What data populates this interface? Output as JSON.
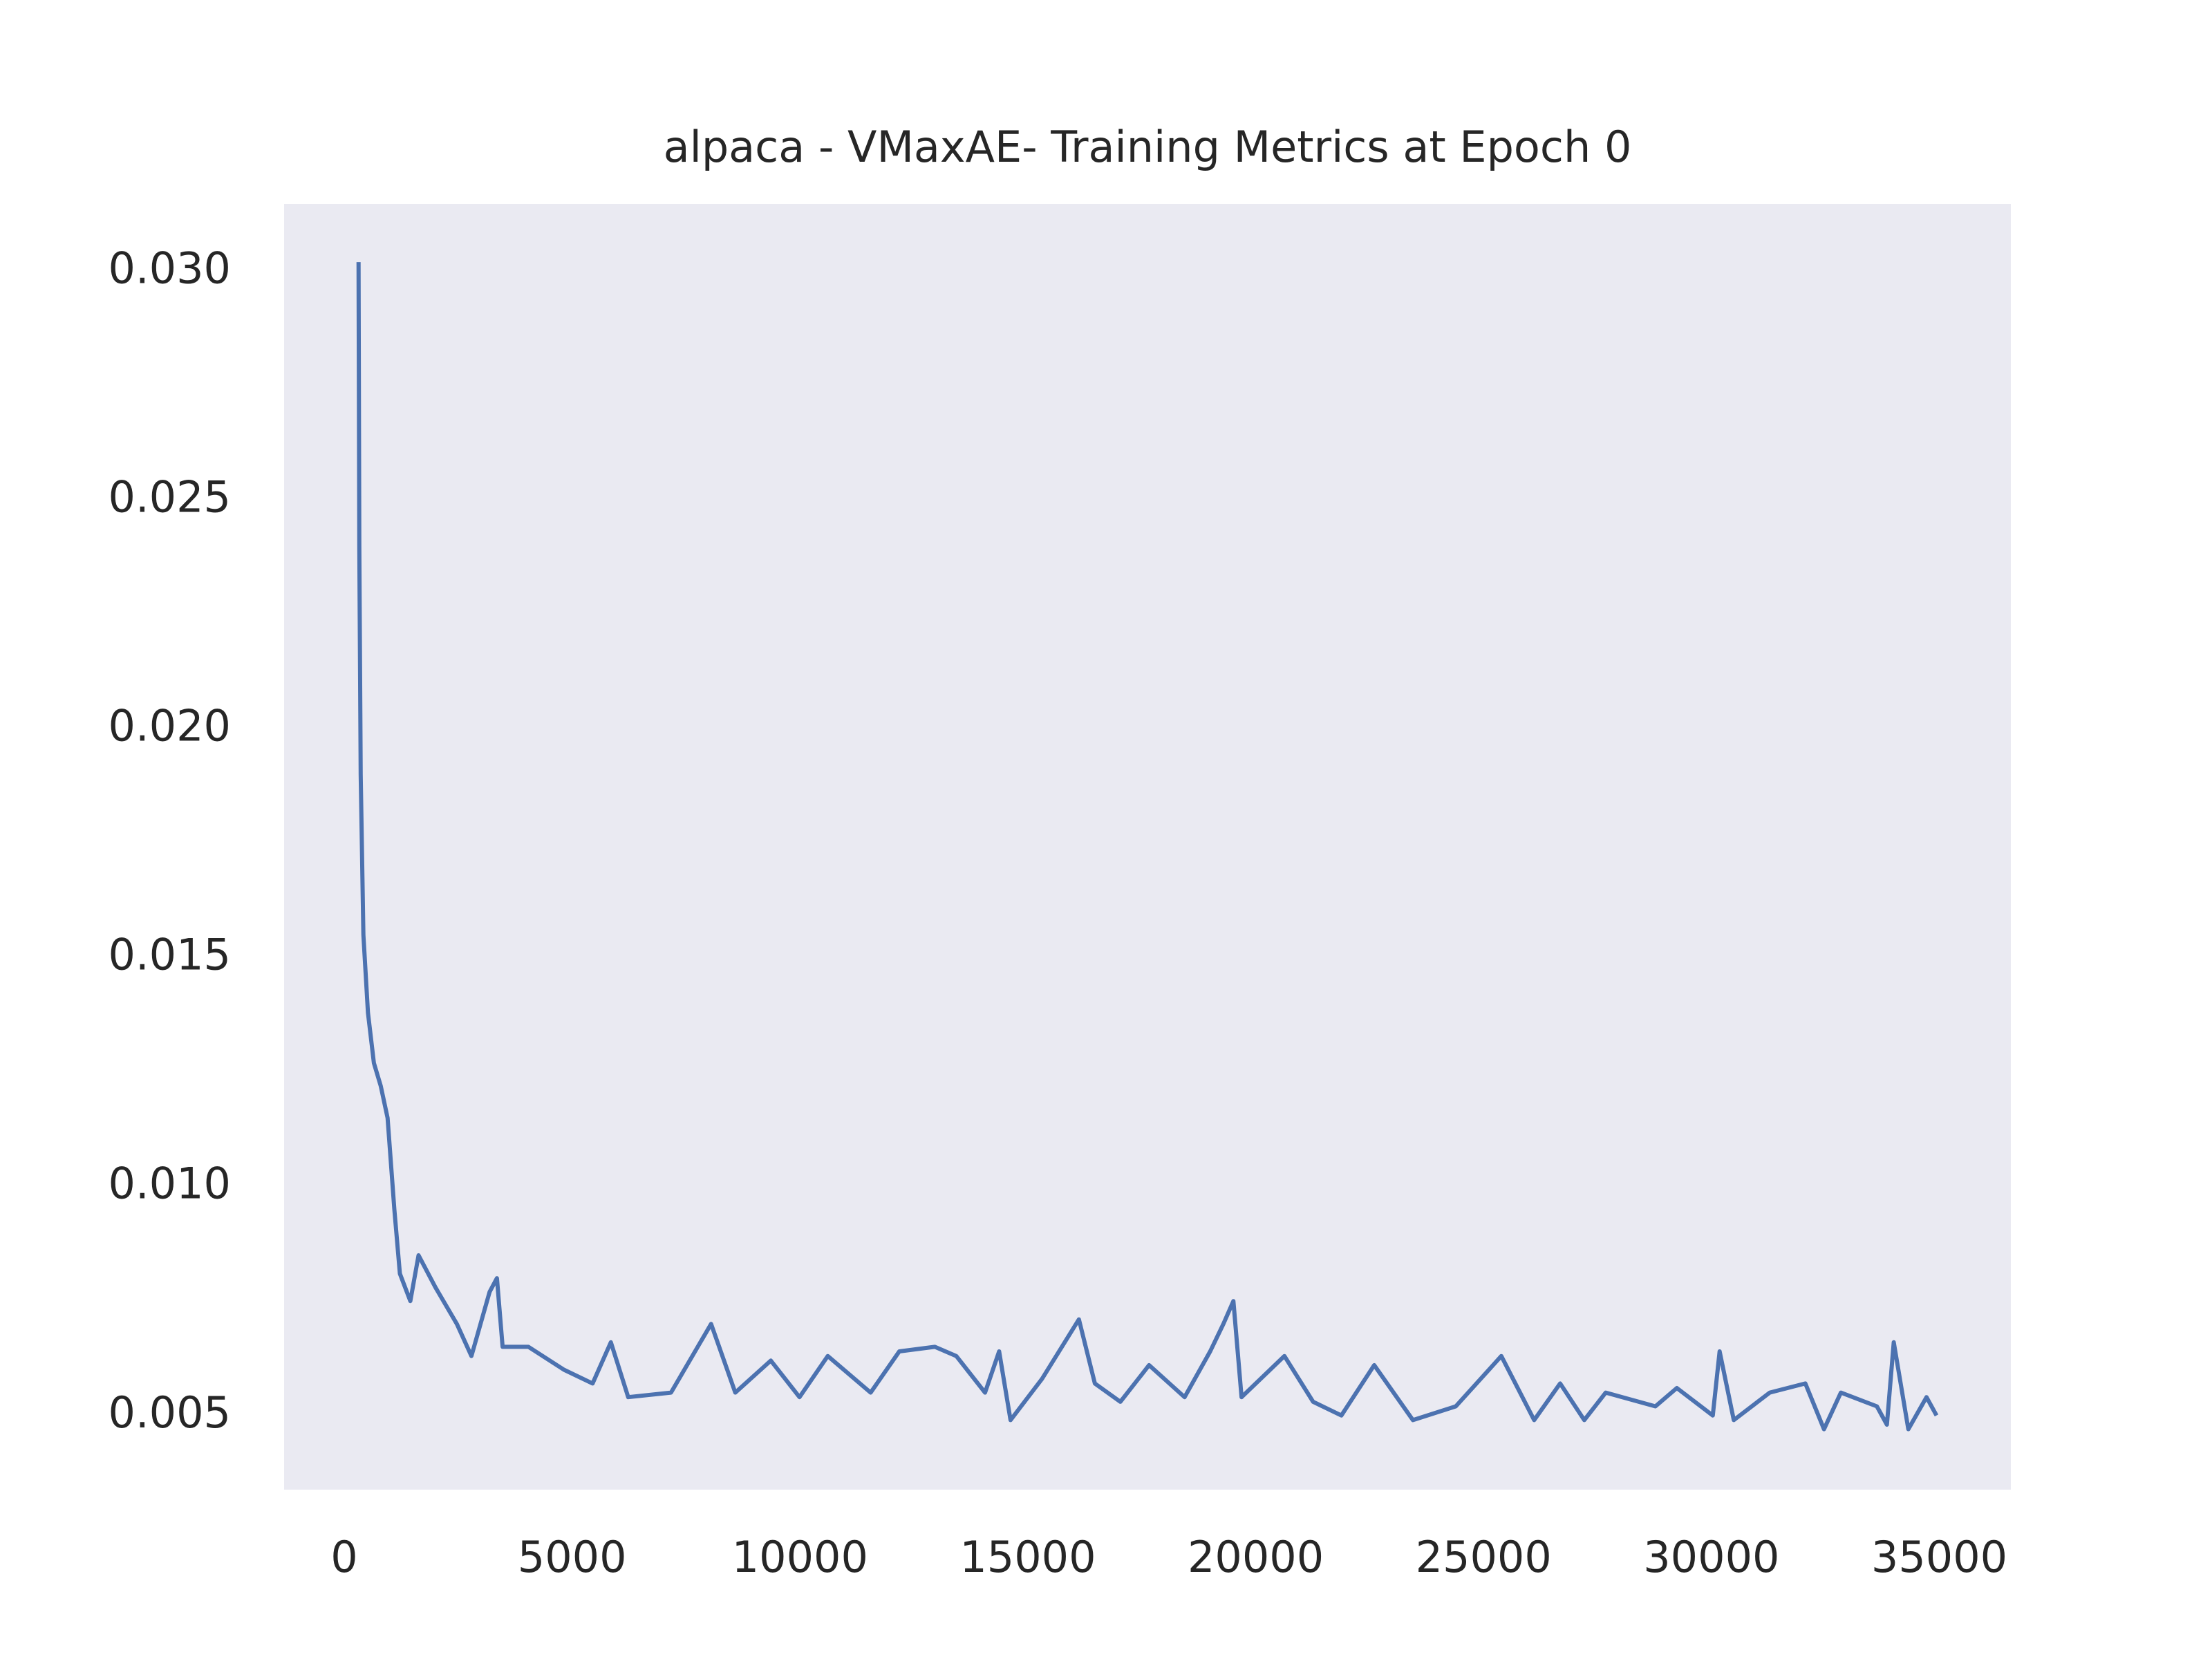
{
  "chart_data": {
    "type": "line",
    "title": "alpaca - VMaxAE- Training Metrics at Epoch 0",
    "x": [
      313,
      330,
      360,
      420,
      520,
      650,
      800,
      950,
      1100,
      1220,
      1450,
      1630,
      2000,
      2470,
      2790,
      3190,
      3350,
      3475,
      4040,
      4820,
      5450,
      5850,
      6230,
      7170,
      8050,
      8580,
      9360,
      9990,
      10610,
      11550,
      12180,
      12960,
      13430,
      14060,
      14370,
      14620,
      15310,
      16120,
      16470,
      17030,
      17660,
      18440,
      19000,
      19290,
      19510,
      19690,
      20630,
      21260,
      21880,
      22600,
      23450,
      24390,
      25390,
      26110,
      26680,
      27210,
      27680,
      28770,
      29240,
      30030,
      30180,
      30490,
      31280,
      32060,
      32470,
      32840,
      33630,
      33850,
      34000,
      34320,
      34720,
      34940
    ],
    "series": [
      {
        "color": "#4c72b0",
        "values": [
          0.0302,
          0.024,
          0.019,
          0.0155,
          0.0138,
          0.0127,
          0.0122,
          0.0115,
          0.0095,
          0.0081,
          0.0075,
          0.0085,
          0.0078,
          0.007,
          0.0063,
          0.0077,
          0.008,
          0.0065,
          0.0065,
          0.006,
          0.0057,
          0.0066,
          0.0054,
          0.0055,
          0.007,
          0.0055,
          0.0062,
          0.0054,
          0.0063,
          0.0055,
          0.0064,
          0.0065,
          0.0063,
          0.0055,
          0.0064,
          0.0049,
          0.0058,
          0.0071,
          0.0057,
          0.0053,
          0.0061,
          0.0054,
          0.0064,
          0.007,
          0.0075,
          0.0054,
          0.0063,
          0.0053,
          0.005,
          0.0061,
          0.0049,
          0.0052,
          0.0063,
          0.0049,
          0.0057,
          0.0049,
          0.0055,
          0.0052,
          0.0056,
          0.005,
          0.0064,
          0.0049,
          0.0055,
          0.0057,
          0.0047,
          0.0055,
          0.0052,
          0.0048,
          0.0066,
          0.0047,
          0.0054,
          0.005
        ]
      }
    ],
    "xlim": [
      -1320,
      36570
    ],
    "ylim": [
      0.00338,
      0.03147
    ],
    "xticks": [
      0,
      5000,
      10000,
      15000,
      20000,
      25000,
      30000,
      35000
    ],
    "yticks": [
      0.005,
      {
        "value": 0.01,
        "label": "0.010"
      },
      0.015,
      {
        "value": 0.02,
        "label": "0.020"
      },
      0.025,
      {
        "value": 0.03,
        "label": "0.030"
      }
    ],
    "grid": false,
    "background": "#eaeaf2"
  }
}
